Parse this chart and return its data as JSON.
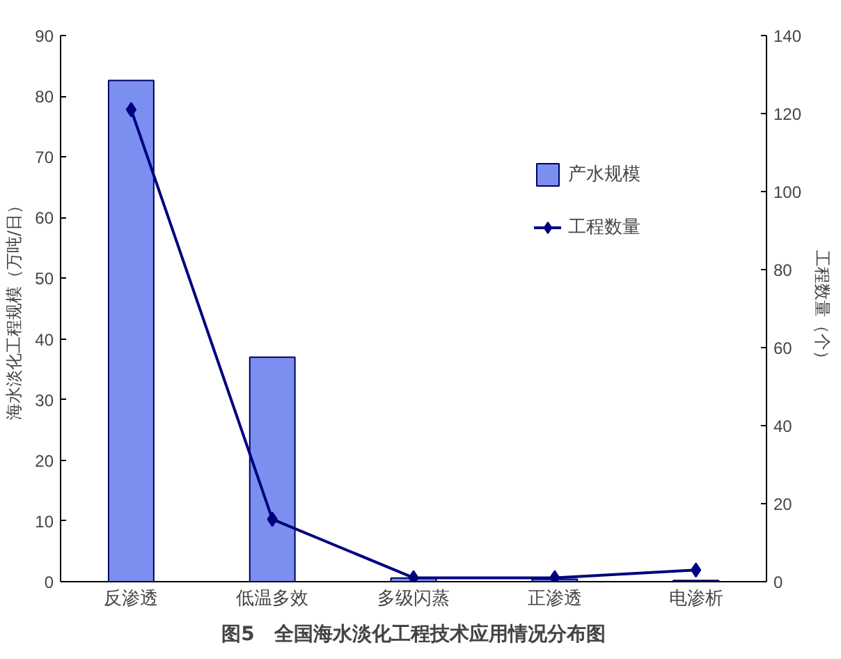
{
  "chart_data": {
    "type": "bar",
    "title": "图5　全国海水淡化工程技术应用情况分布图",
    "categories": [
      "反渗透",
      "低温多效",
      "多级闪蒸",
      "正渗透",
      "电渗析"
    ],
    "series": [
      {
        "name": "产水规模",
        "color": "#7b8ff0",
        "values": [
          82.6,
          37,
          0.6,
          0.4,
          0.2
        ]
      },
      {
        "name": "工程数量",
        "type": "line",
        "axis": "y2",
        "color": "#000080",
        "marker": "diamond",
        "values": [
          121,
          16,
          1,
          1,
          3
        ]
      }
    ],
    "ylabel": "海水淡化工程规模（万吨/日）",
    "y2label": "工程数量（个）",
    "ylim": [
      0,
      90
    ],
    "yticks": [
      0,
      10,
      20,
      30,
      40,
      50,
      60,
      70,
      80,
      90
    ],
    "y2lim": [
      0,
      140
    ],
    "y2ticks": [
      0,
      20,
      40,
      60,
      80,
      100,
      120,
      140
    ],
    "grid": false,
    "legend": "top right"
  }
}
